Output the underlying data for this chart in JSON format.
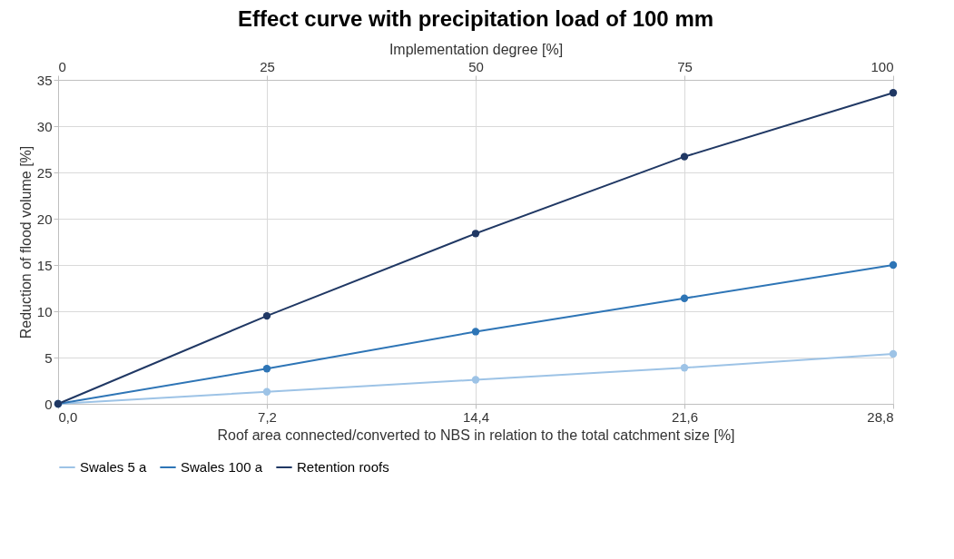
{
  "chart_data": {
    "type": "line",
    "title": "Effect curve with precipitation load of 100 mm",
    "xlabel": "Roof area connected/converted to NBS in relation to the total catchment size [%]",
    "x2label": "Implementation degree [%]",
    "ylabel": "Reduction of flood volume [%]",
    "x": [
      0,
      7.2,
      14.4,
      21.6,
      28.8
    ],
    "series": [
      {
        "name": "Swales 5 a",
        "color": "#9dc3e6",
        "values": [
          0,
          1.3,
          2.6,
          3.9,
          5.4
        ]
      },
      {
        "name": "Swales 100 a",
        "color": "#2e75b6",
        "values": [
          0,
          3.8,
          7.8,
          11.4,
          15.0
        ]
      },
      {
        "name": "Retention roofs",
        "color": "#203864",
        "values": [
          0,
          9.5,
          18.4,
          26.7,
          33.6
        ]
      }
    ],
    "xlim": [
      0,
      28.8
    ],
    "xticks": [
      {
        "value": 0,
        "label": "0,0"
      },
      {
        "value": 7.2,
        "label": "7,2"
      },
      {
        "value": 14.4,
        "label": "14,4"
      },
      {
        "value": 21.6,
        "label": "21,6"
      },
      {
        "value": 28.8,
        "label": "28,8"
      }
    ],
    "x2lim": [
      0,
      100
    ],
    "x2ticks": [
      0,
      25,
      50,
      75,
      100
    ],
    "ylim": [
      0,
      35
    ],
    "yticks": [
      0,
      5,
      10,
      15,
      20,
      25,
      30,
      35
    ],
    "grid": true,
    "legend": "bottom",
    "marker": "circle",
    "line_style": "solid"
  }
}
